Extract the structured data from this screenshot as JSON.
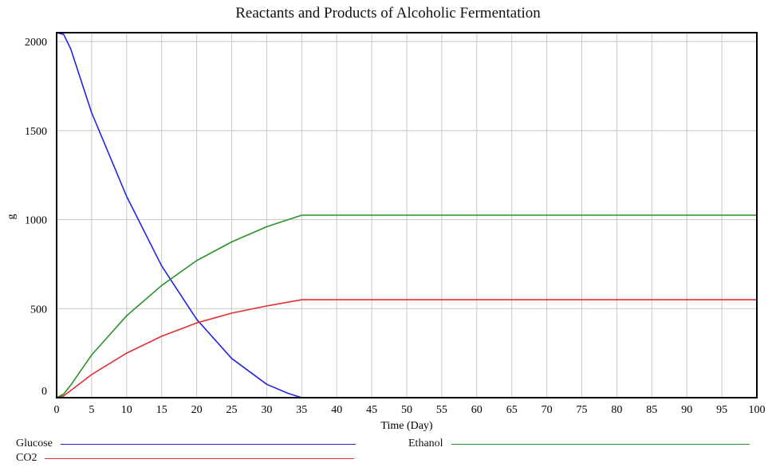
{
  "chart_data": {
    "type": "line",
    "title": "Reactants and Products of Alcoholic Fermentation",
    "xlabel": "Time (Day)",
    "ylabel": "g",
    "xlim": [
      0,
      100
    ],
    "ylim": [
      0,
      2050
    ],
    "x_ticks": [
      0,
      5,
      10,
      15,
      20,
      25,
      30,
      35,
      40,
      45,
      50,
      55,
      60,
      65,
      70,
      75,
      80,
      85,
      90,
      95,
      100
    ],
    "y_ticks": [
      0,
      500,
      1000,
      1500,
      2000
    ],
    "grid": true,
    "series": [
      {
        "name": "Glucose",
        "color": "#2323e0",
        "x": [
          0,
          1,
          2,
          5,
          10,
          15,
          20,
          25,
          30,
          33,
          35
        ],
        "y": [
          2050,
          2040,
          1960,
          1600,
          1130,
          740,
          440,
          220,
          75,
          25,
          0
        ]
      },
      {
        "name": "CO2",
        "color": "#e03030",
        "x": [
          0,
          1,
          2,
          5,
          10,
          15,
          20,
          25,
          30,
          35,
          40,
          50,
          60,
          70,
          80,
          90,
          100
        ],
        "y": [
          0,
          10,
          40,
          130,
          250,
          345,
          420,
          475,
          515,
          550,
          550,
          550,
          550,
          550,
          550,
          550,
          550
        ]
      },
      {
        "name": "Ethanol",
        "color": "#2a922a",
        "x": [
          0,
          1,
          2,
          5,
          10,
          15,
          20,
          25,
          30,
          35,
          40,
          50,
          60,
          70,
          80,
          90,
          100
        ],
        "y": [
          0,
          20,
          70,
          240,
          460,
          630,
          770,
          875,
          960,
          1025,
          1025,
          1025,
          1025,
          1025,
          1025,
          1025,
          1025
        ]
      }
    ]
  },
  "legend": {
    "glucose": "Glucose",
    "co2": "CO2",
    "ethanol": "Ethanol"
  }
}
